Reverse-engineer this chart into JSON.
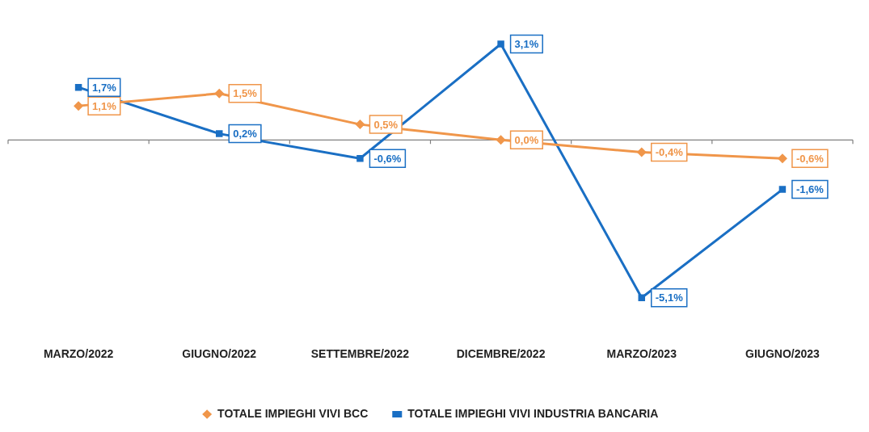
{
  "chart_data": {
    "type": "line",
    "categories": [
      "MARZO/2022",
      "GIUGNO/2022",
      "SETTEMBRE/2022",
      "DICEMBRE/2022",
      "MARZO/2023",
      "GIUGNO/2023"
    ],
    "series": [
      {
        "name": "TOTALE IMPIEGHI VIVI BCC",
        "color": "#f0964a",
        "marker": "diamond",
        "values": [
          1.1,
          1.5,
          0.5,
          0.0,
          -0.4,
          -0.6
        ],
        "value_labels": [
          "1,1%",
          "1,5%",
          "0,5%",
          "0,0%",
          "-0,4%",
          "-0,6%"
        ]
      },
      {
        "name": "TOTALE IMPIEGHI VIVI INDUSTRIA BANCARIA",
        "color": "#1a6fc4",
        "marker": "square",
        "values": [
          1.7,
          0.2,
          -0.6,
          3.1,
          -5.1,
          -1.6
        ],
        "value_labels": [
          "1,7%",
          "0,2%",
          "-0,6%",
          "3,1%",
          "-5,1%",
          "-1,6%"
        ]
      }
    ],
    "tick_labels": "x",
    "grid": false,
    "legend": "bottom",
    "line_style": "solid"
  }
}
